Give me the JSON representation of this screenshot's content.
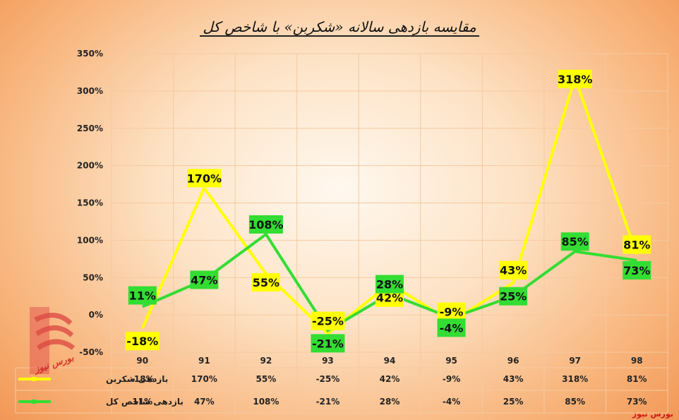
{
  "chart_data": {
    "type": "line",
    "title": "مقایسه بازدهی سالانه «شکربن» با شاخص کل",
    "categories": [
      "90",
      "91",
      "92",
      "93",
      "94",
      "95",
      "96",
      "97",
      "98"
    ],
    "ylim": [
      -50,
      350
    ],
    "yticks": [
      -50,
      0,
      50,
      100,
      150,
      200,
      250,
      300,
      350
    ],
    "ytick_labels": [
      "-50%",
      "0%",
      "50%",
      "100%",
      "150%",
      "200%",
      "250%",
      "300%",
      "350%"
    ],
    "grid": true,
    "legend": "data-table-left",
    "series": [
      {
        "name": "بازدهی شکربن",
        "color": "#ffff00",
        "values": [
          -18,
          170,
          55,
          -25,
          42,
          -9,
          43,
          318,
          81
        ],
        "labels": [
          "-18%",
          "170%",
          "55%",
          "-25%",
          "42%",
          "-9%",
          "43%",
          "318%",
          "81%"
        ]
      },
      {
        "name": "بازدهی شاخص کل",
        "color": "#33dd33",
        "values": [
          11,
          47,
          108,
          -21,
          28,
          -4,
          25,
          85,
          73
        ],
        "labels": [
          "11%",
          "47%",
          "108%",
          "-21%",
          "28%",
          "-4%",
          "25%",
          "85%",
          "73%"
        ]
      }
    ]
  },
  "watermark": "بورس نیوز",
  "logo_text": "بورس نیوز"
}
